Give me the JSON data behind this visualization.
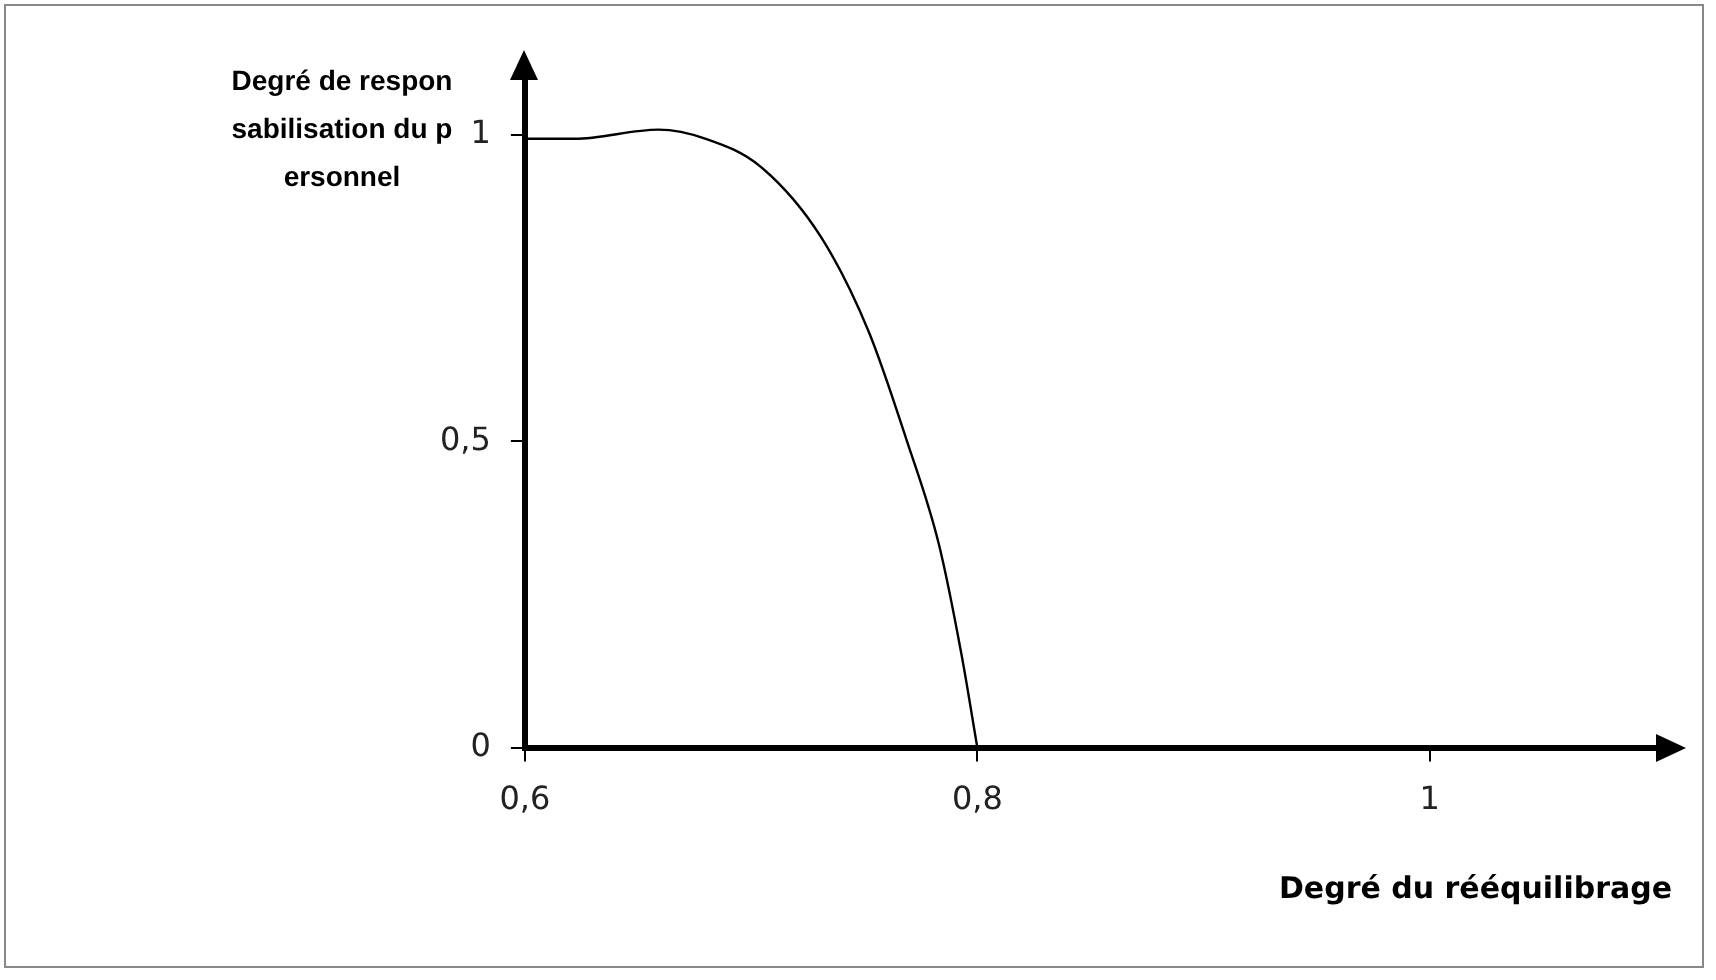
{
  "chart_data": {
    "type": "line",
    "xlabel": "Degré du rééquilibrage",
    "ylabel": "Degré de responsabilisation du personnel",
    "x": [
      0.6,
      0.622,
      0.659,
      0.68,
      0.704,
      0.731,
      0.752,
      0.769,
      0.783,
      0.793,
      0.8
    ],
    "series": [
      {
        "color": "#000000",
        "values": [
          0.994,
          0.994,
          1.009,
          0.994,
          0.949,
          0.833,
          0.679,
          0.499,
          0.332,
          0.152,
          0
        ]
      }
    ],
    "xlim": [
      0.6,
      1.1
    ],
    "xticks": [
      {
        "value": 0.6,
        "label": "0,6"
      },
      {
        "value": 0.8,
        "label": "0,8"
      },
      {
        "value": 1,
        "label": "1"
      }
    ],
    "ylim": [
      0,
      1.09
    ],
    "yticks": [
      {
        "value": 0,
        "label": "0"
      },
      {
        "value": 0.5,
        "label": "0,5"
      },
      {
        "value": 1,
        "label": "1"
      }
    ],
    "grid": false,
    "legend": false,
    "marker": "none",
    "line_style": "solid"
  }
}
